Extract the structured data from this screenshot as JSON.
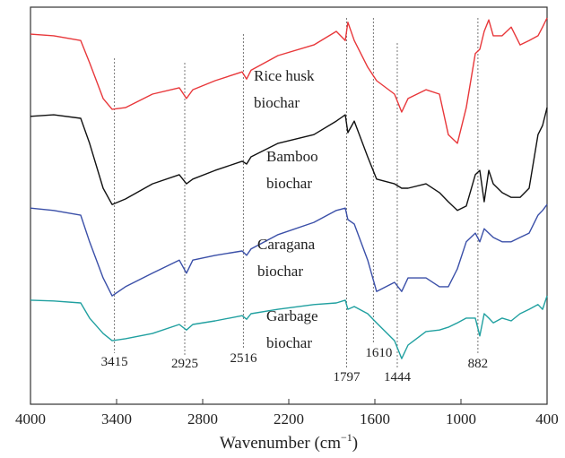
{
  "chart_data": {
    "type": "line",
    "xlabel_parts": [
      "Wavenumber (cm",
      "−1",
      ")"
    ],
    "xlim": [
      4000,
      400
    ],
    "xticks": [
      4000,
      3400,
      2800,
      2200,
      1600,
      1000,
      400
    ],
    "ylim": [
      0,
      100
    ],
    "x": [
      4000,
      3838,
      3650,
      3588,
      3494,
      3431,
      3338,
      3150,
      2963,
      2913,
      2869,
      2713,
      2525,
      2494,
      2463,
      2275,
      2025,
      1869,
      1806,
      1788,
      1744,
      1650,
      1588,
      1463,
      1413,
      1369,
      1244,
      1150,
      1088,
      1025,
      963,
      900,
      869,
      838,
      806,
      775,
      713,
      650,
      588,
      525,
      463,
      431,
      400
    ],
    "series": [
      {
        "name": "Rice husk biochar",
        "color": "#e8373a",
        "values": [
          93.2,
          92.8,
          91.6,
          86.0,
          77.0,
          74.3,
          74.7,
          78.1,
          79.7,
          77.0,
          79.2,
          81.5,
          83.7,
          81.9,
          84.1,
          87.8,
          90.5,
          93.9,
          91.6,
          96.2,
          91.6,
          84.9,
          81.5,
          78.1,
          73.6,
          77.0,
          79.2,
          78.1,
          67.9,
          65.7,
          74.7,
          88.3,
          89.4,
          93.9,
          96.8,
          92.8,
          92.8,
          95.0,
          90.5,
          91.6,
          92.8,
          95.0,
          97.3
        ]
      },
      {
        "name": "Bamboo biochar",
        "color": "#111111",
        "values": [
          72.5,
          72.9,
          72.0,
          65.7,
          54.4,
          50.3,
          51.7,
          55.5,
          57.8,
          55.5,
          56.7,
          58.9,
          61.2,
          60.5,
          62.3,
          65.7,
          67.9,
          71.3,
          72.9,
          68.4,
          71.3,
          62.3,
          56.7,
          55.5,
          54.4,
          54.4,
          55.5,
          53.3,
          51.0,
          48.8,
          49.9,
          57.8,
          58.9,
          51.0,
          58.9,
          55.5,
          53.3,
          52.1,
          52.1,
          54.4,
          67.9,
          70.2,
          74.7
        ]
      },
      {
        "name": "Caragana biochar",
        "color": "#3a4fa8",
        "values": [
          49.4,
          48.8,
          47.6,
          40.9,
          31.8,
          27.3,
          29.6,
          33.0,
          36.3,
          33.0,
          36.3,
          37.5,
          38.6,
          37.5,
          39.1,
          42.7,
          45.8,
          48.8,
          49.4,
          46.5,
          45.4,
          36.3,
          28.4,
          30.7,
          28.4,
          31.8,
          31.8,
          29.6,
          29.6,
          34.1,
          40.9,
          43.1,
          40.9,
          44.2,
          43.1,
          42.0,
          40.9,
          40.9,
          42.0,
          43.1,
          47.6,
          48.8,
          50.3
        ]
      },
      {
        "name": "Garbage biochar",
        "color": "#20a0a0",
        "values": [
          26.2,
          26.0,
          25.5,
          21.7,
          17.8,
          16.0,
          16.5,
          17.8,
          20.1,
          18.7,
          20.1,
          21.0,
          22.3,
          21.4,
          22.8,
          23.9,
          25.1,
          25.5,
          26.2,
          23.9,
          24.6,
          22.8,
          20.5,
          16.0,
          11.5,
          14.9,
          18.3,
          18.7,
          19.4,
          20.5,
          21.7,
          21.7,
          17.2,
          22.8,
          21.7,
          20.5,
          21.7,
          21.0,
          22.8,
          23.9,
          25.1,
          23.9,
          27.3
        ]
      }
    ],
    "markers": [
      3415,
      2925,
      2516,
      1797,
      1610,
      1444,
      882
    ]
  }
}
